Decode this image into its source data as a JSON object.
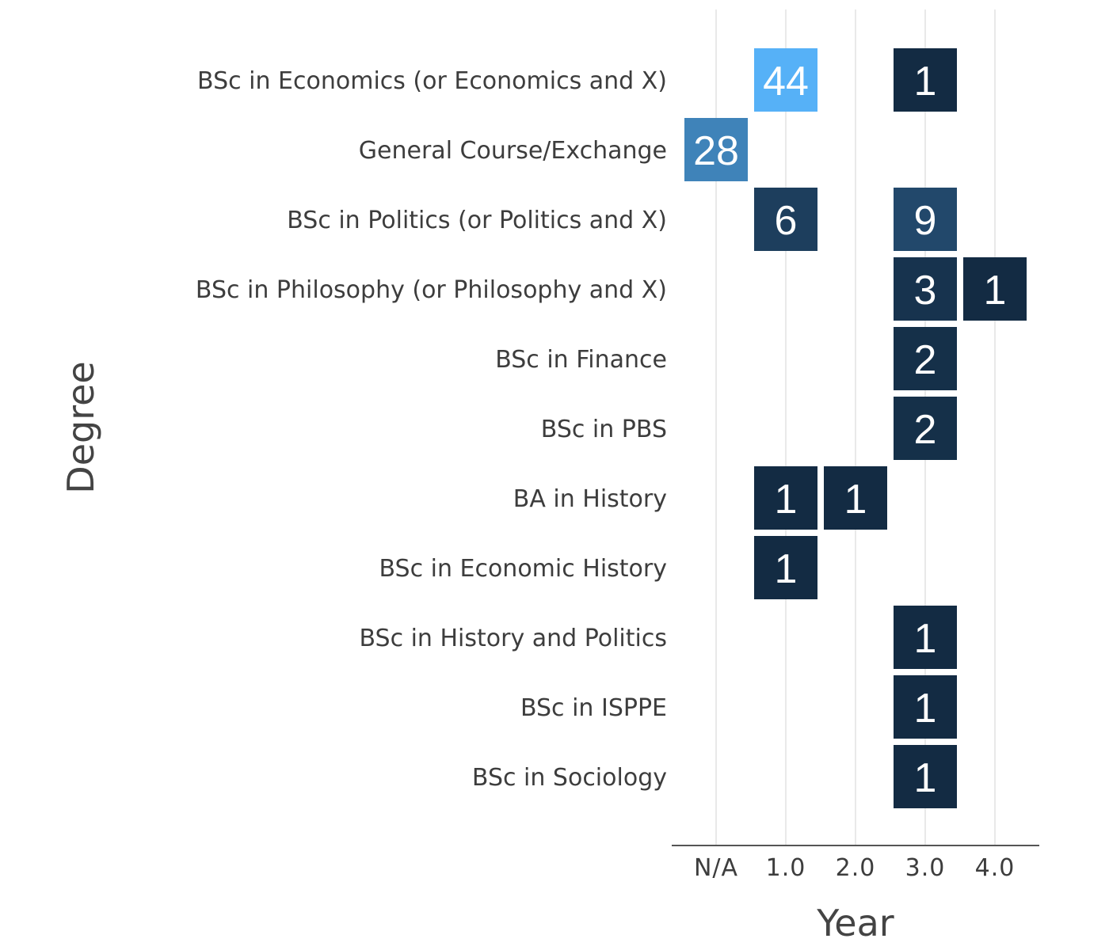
{
  "chart_data": {
    "type": "heatmap",
    "xlabel": "Year",
    "ylabel": "Degree",
    "x_categories": [
      "N/A",
      "1.0",
      "2.0",
      "3.0",
      "4.0"
    ],
    "y_categories": [
      "BSc in Economics (or Economics and X)",
      "General Course/Exchange",
      "BSc in Politics (or Politics and X)",
      "BSc in Philosophy (or Philosophy and X)",
      "BSc in Finance",
      "BSc in PBS",
      "BA in History",
      "BSc in Economic History",
      "BSc in History and Politics",
      "BSc in ISPPE",
      "BSc in Sociology"
    ],
    "cells": [
      {
        "degree": "BSc in Economics (or Economics and X)",
        "year": "1.0",
        "value": 44,
        "label": "44"
      },
      {
        "degree": "BSc in Economics (or Economics and X)",
        "year": "3.0",
        "value": 1,
        "label": "1"
      },
      {
        "degree": "General Course/Exchange",
        "year": "N/A",
        "value": 28,
        "label": "28"
      },
      {
        "degree": "BSc in Politics (or Politics and X)",
        "year": "1.0",
        "value": 6,
        "label": "6"
      },
      {
        "degree": "BSc in Politics (or Politics and X)",
        "year": "3.0",
        "value": 9,
        "label": "9"
      },
      {
        "degree": "BSc in Philosophy (or Philosophy and X)",
        "year": "3.0",
        "value": 3,
        "label": "3"
      },
      {
        "degree": "BSc in Philosophy (or Philosophy and X)",
        "year": "4.0",
        "value": 1,
        "label": "1"
      },
      {
        "degree": "BSc in Finance",
        "year": "3.0",
        "value": 2,
        "label": "2"
      },
      {
        "degree": "BSc in PBS",
        "year": "3.0",
        "value": 2,
        "label": "2"
      },
      {
        "degree": "BA in History",
        "year": "1.0",
        "value": 1,
        "label": "1"
      },
      {
        "degree": "BA in History",
        "year": "2.0",
        "value": 1,
        "label": "1"
      },
      {
        "degree": "BSc in Economic History",
        "year": "1.0",
        "value": 1,
        "label": "1"
      },
      {
        "degree": "BSc in History and Politics",
        "year": "3.0",
        "value": 1,
        "label": "1"
      },
      {
        "degree": "BSc in ISPPE",
        "year": "3.0",
        "value": 1,
        "label": "1"
      },
      {
        "degree": "BSc in Sociology",
        "year": "3.0",
        "value": 1,
        "label": "1"
      }
    ],
    "color_scale": {
      "low": "#132b43",
      "high": "#56b1f7",
      "min": 1,
      "max": 44
    },
    "grid": true,
    "legend": "none"
  }
}
